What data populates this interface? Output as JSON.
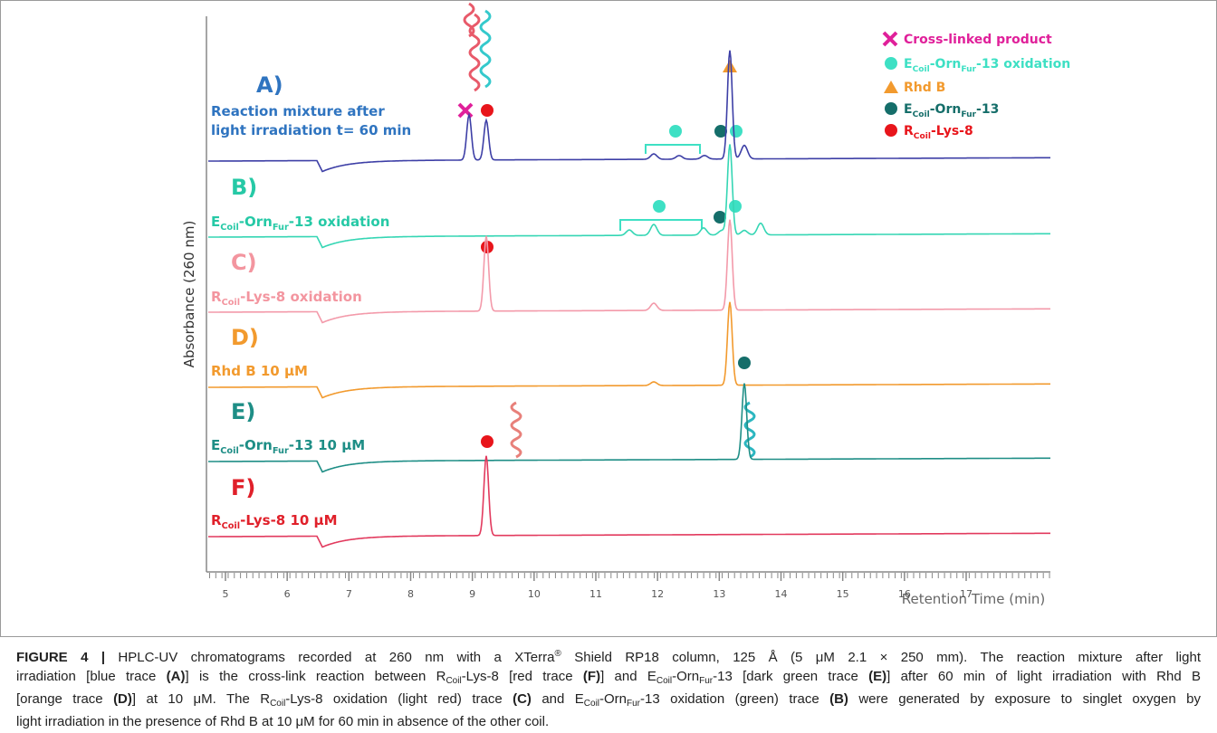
{
  "figure": {
    "plot": {
      "x_axis": {
        "label": "Retention Time (min)",
        "ticks": [
          5,
          6,
          7,
          8,
          9,
          10,
          11,
          12,
          13,
          14,
          15,
          16,
          17
        ]
      },
      "y_axis": {
        "label": "Absorbance (260 nm)"
      },
      "traces": [
        {
          "letter": "A)",
          "color": "#3d3fa6",
          "label_color": "#2f74c0",
          "label": [
            [
              {
                "text": "Reaction mixture after"
              }
            ],
            [
              {
                "text": "light irradiation t= 60 min"
              }
            ]
          ]
        },
        {
          "letter": "B)",
          "color": "#35d6b4",
          "label_color": "#26c9a6",
          "label": [
            [
              {
                "text": "E"
              },
              {
                "text": "Coil",
                "style": "sub"
              },
              {
                "text": "-Orn"
              },
              {
                "text": "Fur",
                "style": "sub"
              },
              {
                "text": "-13 oxidation"
              }
            ]
          ]
        },
        {
          "letter": "C)",
          "color": "#f39aaa",
          "label_color": "#f3959f",
          "label": [
            [
              {
                "text": "R"
              },
              {
                "text": "Coil",
                "style": "sub"
              },
              {
                "text": "-Lys-8 oxidation"
              }
            ]
          ]
        },
        {
          "letter": "D)",
          "color": "#f29a2e",
          "label_color": "#f29a2e",
          "label": [
            [
              {
                "text": "Rhd B 10 μM"
              }
            ]
          ]
        },
        {
          "letter": "E)",
          "color": "#1e8e86",
          "label_color": "#1e8e86",
          "label": [
            [
              {
                "text": "E"
              },
              {
                "text": "Coil",
                "style": "sub"
              },
              {
                "text": "-Orn"
              },
              {
                "text": "Fur",
                "style": "sub"
              },
              {
                "text": "-13 10 μM"
              }
            ]
          ]
        },
        {
          "letter": "F)",
          "color": "#e23a5e",
          "label_color": "#e0202a",
          "label": [
            [
              {
                "text": "R"
              },
              {
                "text": "Coil",
                "style": "sub"
              },
              {
                "text": "-Lys-8 10 μM"
              }
            ]
          ]
        }
      ],
      "legend": [
        {
          "color": "#e0209a",
          "label": [
            {
              "text": "Cross-linked product"
            }
          ]
        },
        {
          "color": "#3ee0c4",
          "label": [
            {
              "text": "E"
            },
            {
              "text": "Coil",
              "style": "sub"
            },
            {
              "text": "-Orn"
            },
            {
              "text": "Fur",
              "style": "sub"
            },
            {
              "text": "-13 oxidation"
            }
          ]
        },
        {
          "color": "#f29a2e",
          "label": [
            {
              "text": "Rhd B"
            }
          ]
        },
        {
          "color": "#156e6a",
          "label": [
            {
              "text": "E"
            },
            {
              "text": "Coil",
              "style": "sub"
            },
            {
              "text": "-Orn"
            },
            {
              "text": "Fur",
              "style": "sub"
            },
            {
              "text": "-13"
            }
          ]
        },
        {
          "color": "#e8151b",
          "label": [
            {
              "text": "R"
            },
            {
              "text": "Coil",
              "style": "sub"
            },
            {
              "text": "-Lys-8"
            }
          ]
        }
      ]
    },
    "caption": {
      "lines": [
        [
          {
            "text": "FIGURE 4 |",
            "style": "bold"
          },
          {
            "text": " HPLC-UV chromatograms recorded at 260 nm with a XTerra"
          },
          {
            "text": "®",
            "style": "sup"
          },
          {
            "text": " Shield RP18 column, 125 Å (5 μM 2.1 × 250 mm). The reaction mixture after light"
          }
        ],
        [
          {
            "text": "irradiation [blue trace "
          },
          {
            "text": "(A)",
            "style": "bold"
          },
          {
            "text": "] is the cross-link reaction between R"
          },
          {
            "text": "Coil",
            "style": "sub"
          },
          {
            "text": "-Lys-8 [red trace "
          },
          {
            "text": "(F)",
            "style": "bold"
          },
          {
            "text": "] and E"
          },
          {
            "text": "Coil",
            "style": "sub"
          },
          {
            "text": "-Orn"
          },
          {
            "text": "Fur",
            "style": "sub"
          },
          {
            "text": "-13 [dark green trace "
          },
          {
            "text": "(E)",
            "style": "bold"
          },
          {
            "text": "] after 60 min of light irradiation with Rhd B"
          }
        ],
        [
          {
            "text": "[orange trace "
          },
          {
            "text": "(D)",
            "style": "bold"
          },
          {
            "text": "] at 10 μM. The R"
          },
          {
            "text": "Coil",
            "style": "sub"
          },
          {
            "text": "-Lys-8 oxidation (light red) trace "
          },
          {
            "text": "(C)",
            "style": "bold"
          },
          {
            "text": " and E"
          },
          {
            "text": "Coil",
            "style": "sub"
          },
          {
            "text": "-Orn"
          },
          {
            "text": "Fur",
            "style": "sub"
          },
          {
            "text": "-13 oxidation (green) trace "
          },
          {
            "text": "(B)",
            "style": "bold"
          },
          {
            "text": " were generated by exposure to singlet oxygen by"
          }
        ],
        [
          {
            "text": "light irradiation in the presence of Rhd B at 10 μM for 60 min in absence of the other coil."
          }
        ]
      ]
    }
  }
}
